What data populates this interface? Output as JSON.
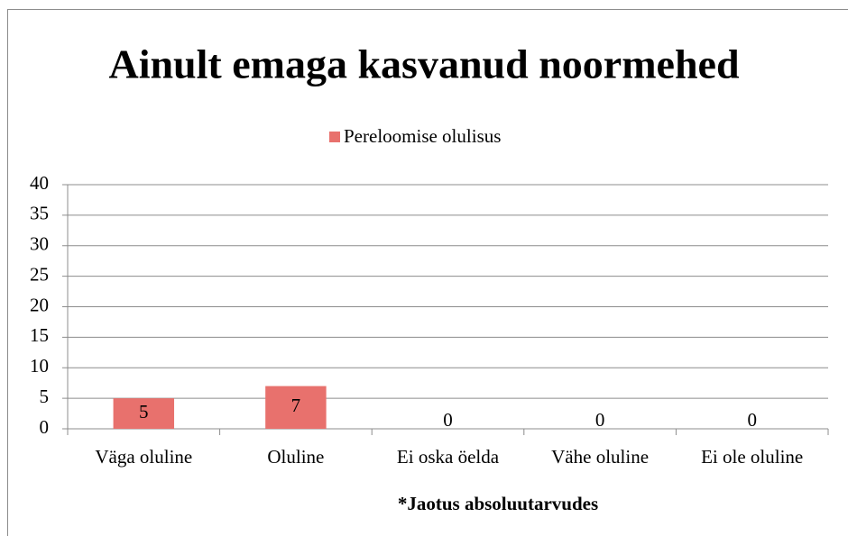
{
  "chart_data": {
    "type": "bar",
    "title": "Ainult emaga kasvanud noormehed",
    "categories": [
      "Väga oluline",
      "Oluline",
      "Ei oska öelda",
      "Vähe oluline",
      "Ei ole oluline"
    ],
    "series": [
      {
        "name": "Pereloomise olulisus",
        "color": "#e8716d",
        "values": [
          5,
          7,
          0,
          0,
          0
        ]
      }
    ],
    "ylim": [
      0,
      40
    ],
    "yticks": [
      0,
      5,
      10,
      15,
      20,
      25,
      30,
      35,
      40
    ],
    "grid": true,
    "legend": "top",
    "xlabel": "*Jaotus absoluutarvudes"
  }
}
